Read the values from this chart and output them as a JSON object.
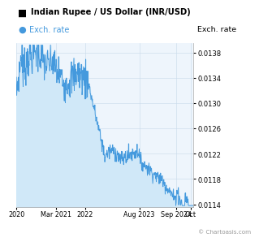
{
  "title": "Indian Rupee / US Dollar (INR/USD)",
  "legend_label": "Exch. rate",
  "ylabel": "Exch. rate",
  "copyright": "© Chartoasis.com",
  "line_color": "#4499dd",
  "fill_color": "#d0e8f8",
  "background_color": "#ffffff",
  "plot_bg_color": "#eef5fc",
  "legend_dot_color": "#4499dd",
  "ylim": [
    0.01135,
    0.01395
  ],
  "yticks": [
    0.0114,
    0.0118,
    0.0122,
    0.0126,
    0.013,
    0.0134,
    0.0138
  ],
  "ytick_labels": [
    "0.0114",
    "0.0118",
    "0.0122",
    "0.0126",
    "0.0130",
    "0.0134",
    "0.0138"
  ],
  "x_tick_labels": [
    "2020",
    "Mar 2021",
    "2022",
    "Aug 2023",
    "Sep 2024",
    "Oct"
  ],
  "x_tick_positions": [
    0,
    14,
    24,
    43,
    56,
    61
  ]
}
